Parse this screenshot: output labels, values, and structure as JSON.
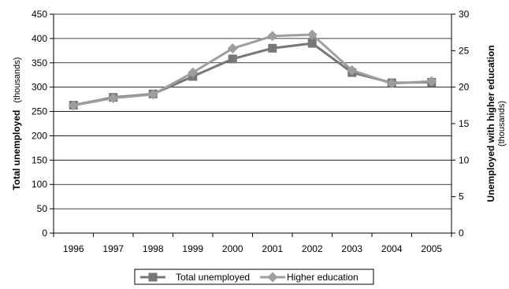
{
  "chart_data": {
    "type": "line",
    "x": [
      "1996",
      "1997",
      "1998",
      "1999",
      "2000",
      "2001",
      "2002",
      "2003",
      "2004",
      "2005"
    ],
    "series": [
      {
        "name": "Total unemployed",
        "axis": "left",
        "color": "#777777",
        "marker": "square",
        "values": [
          263,
          279,
          286,
          322,
          358,
          380,
          390,
          330,
          309,
          310
        ]
      },
      {
        "name": "Higher education",
        "axis": "right",
        "color": "#9e9e9e",
        "marker": "diamond",
        "values": [
          17.5,
          18.5,
          19.0,
          22.0,
          25.3,
          27.0,
          27.2,
          22.3,
          20.5,
          20.8
        ]
      }
    ],
    "y_left": {
      "label_bold": "Total unemployed",
      "label_paren": "(thousands)",
      "ylim": [
        0,
        450
      ],
      "ticks": [
        "0",
        "50",
        "100",
        "150",
        "200",
        "250",
        "300",
        "350",
        "400",
        "450"
      ]
    },
    "y_right": {
      "label_bold": "Unemployed with higher education",
      "label_paren": "(thousands)",
      "ylim": [
        0,
        30
      ],
      "ticks": [
        "0",
        "5",
        "10",
        "15",
        "20",
        "25",
        "30"
      ]
    },
    "grid": "horizontal",
    "legend": "bottom-center"
  }
}
